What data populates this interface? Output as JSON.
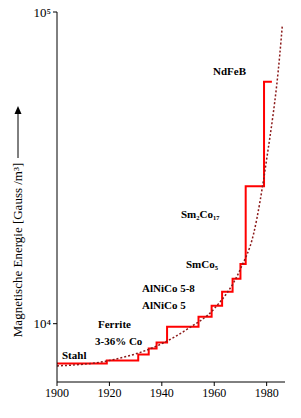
{
  "chart_data": {
    "type": "line",
    "y_label": "Magnetische Energie  [Gauss /m³]",
    "xlim": [
      1900,
      1987
    ],
    "xticks": [
      1900,
      1920,
      1940,
      1960,
      1980
    ],
    "ylim": [
      6500,
      100000
    ],
    "yticks": [
      {
        "value": 10000,
        "label": "10⁴"
      },
      {
        "value": 100000,
        "label": "10⁵"
      }
    ],
    "log": "y",
    "grid": false,
    "annotations": [
      "NdFeB",
      "Sm₂Co₁₇",
      "SmCo₅",
      "AlNiCo 5-8",
      "AlNiCo 5",
      "Ferrite",
      "3-36% Co",
      "Stahl"
    ],
    "series": [
      {
        "type": "step",
        "color": "#ff0000",
        "line_style": "solid",
        "x": [
          1900,
          1919,
          1931,
          1935,
          1938,
          1942,
          1954,
          1959,
          1963,
          1967,
          1970,
          1972,
          1979,
          1982
        ],
        "values": [
          7450,
          7620,
          7960,
          8320,
          8700,
          9780,
          10530,
          11420,
          12650,
          13930,
          15550,
          27600,
          59700,
          59700
        ]
      },
      {
        "type": "line",
        "color": "#8b1a1a",
        "line_style": "dotted",
        "x": [
          1900,
          1920,
          1940,
          1950,
          1960,
          1970,
          1975,
          1980,
          1985,
          1986
        ],
        "values": [
          7320,
          7620,
          8630,
          9640,
          11170,
          14990,
          19400,
          33700,
          72800,
          91000
        ]
      }
    ]
  }
}
